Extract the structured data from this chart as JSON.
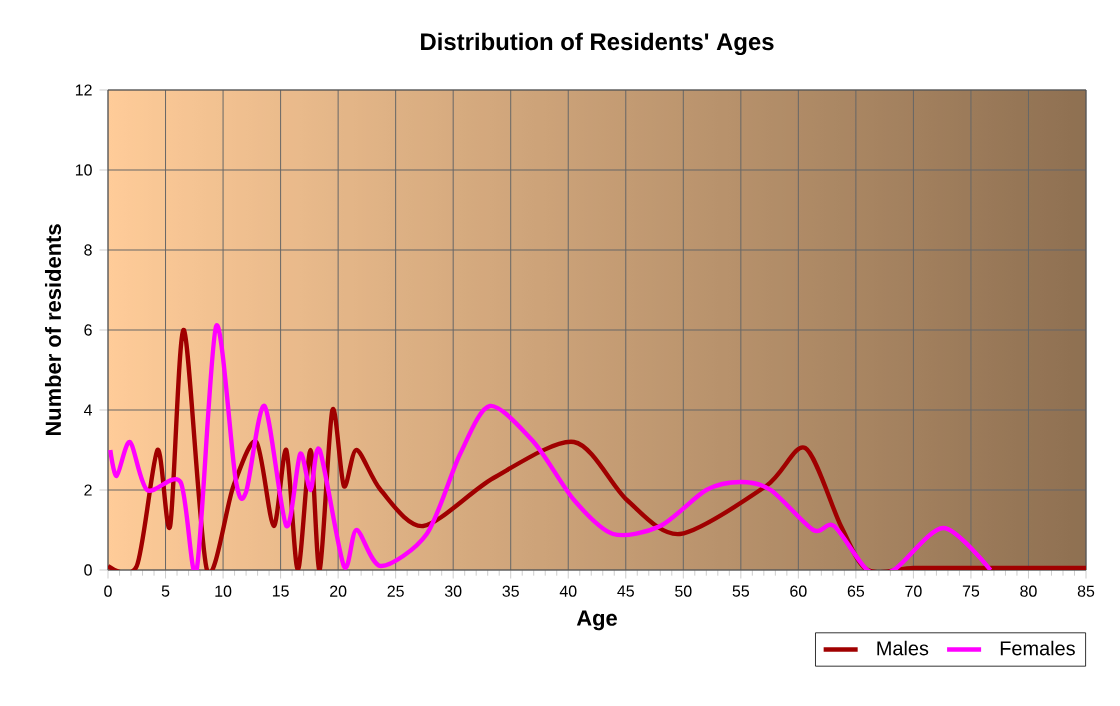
{
  "chart_data": {
    "type": "line",
    "title": "Distribution of Residents' Ages",
    "xlabel": "Age",
    "ylabel": "Number of residents",
    "xlim": [
      0,
      85
    ],
    "xticks": [
      0,
      5,
      10,
      15,
      20,
      25,
      30,
      35,
      40,
      45,
      50,
      55,
      60,
      65,
      70,
      75,
      80,
      85
    ],
    "ylim": [
      0,
      12
    ],
    "yticks": [
      0,
      2,
      4,
      6,
      8,
      10,
      12
    ],
    "grid": true,
    "legend": "bottom right",
    "marker": "none",
    "line_style": "solid",
    "series": [
      {
        "name": "Males",
        "color": "#a00000",
        "x": [
          0,
          2.5,
          4.3,
          5.4,
          6.6,
          8.6,
          10.9,
          12.9,
          14.4,
          15.5,
          16.5,
          17.6,
          18.4,
          19.5,
          20.5,
          21.6,
          23.7,
          27.4,
          33.5,
          40.5,
          45.1,
          49.7,
          57.2,
          60.6,
          63.7,
          66,
          70,
          75,
          80,
          85
        ],
        "values": [
          0.1,
          0.1,
          3.0,
          1.1,
          6.0,
          0,
          2.1,
          3.2,
          1.1,
          3.0,
          0,
          3.0,
          0,
          4.0,
          2.1,
          3.0,
          2.0,
          1.1,
          2.3,
          3.2,
          1.75,
          0.9,
          2.1,
          3.05,
          1.1,
          0,
          0.05,
          0.05,
          0.05,
          0.05
        ]
      },
      {
        "name": "Females",
        "color": "#ff00ff",
        "x": [
          0.2,
          0.75,
          1.9,
          3.4,
          6.3,
          7.7,
          9.4,
          11.1,
          12.0,
          13.6,
          15.5,
          16.7,
          17.6,
          18.4,
          20.5,
          21.6,
          23.7,
          27.7,
          30.6,
          33.2,
          37,
          40.5,
          43.9,
          48,
          52,
          55,
          57.6,
          61.3,
          63.1,
          66,
          68.3,
          72.6,
          76.7
        ],
        "values": [
          3.0,
          2.35,
          3.2,
          2.0,
          2.2,
          0,
          6.1,
          2.25,
          1.95,
          4.1,
          1.1,
          2.9,
          2.0,
          3.0,
          0.1,
          1.0,
          0.1,
          0.9,
          2.9,
          4.1,
          3.2,
          1.75,
          0.9,
          1.1,
          2.0,
          2.2,
          2.0,
          1.0,
          1.1,
          0,
          0,
          1.05,
          0
        ]
      }
    ]
  }
}
